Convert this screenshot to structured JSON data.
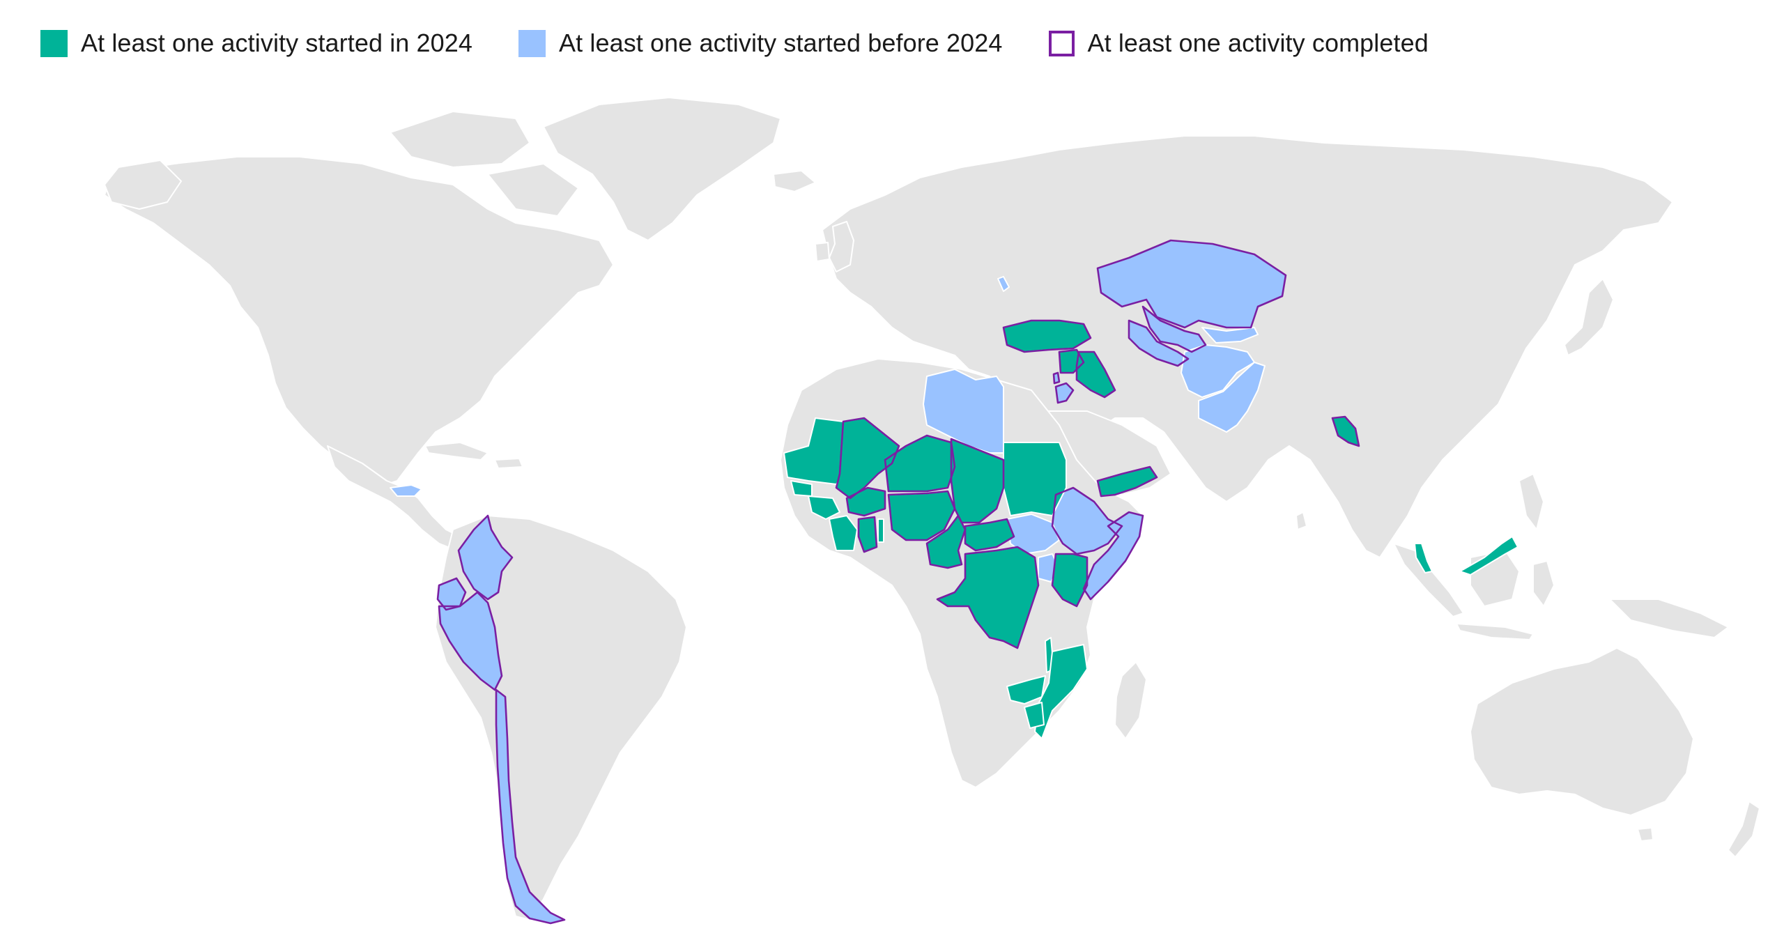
{
  "legend": {
    "items": [
      {
        "label": "At least one activity started in 2024",
        "color": "#00b398",
        "style": "fill"
      },
      {
        "label": "At least one activity started before 2024",
        "color": "#99c2ff",
        "style": "fill"
      },
      {
        "label": "At least one activity completed",
        "color": "#7a1fa2",
        "style": "outline"
      }
    ]
  },
  "map": {
    "land_color": "#e4e4e4",
    "border_color": "#ffffff",
    "categories": {
      "started_in_2024": [
        "Mauritania",
        "Mali",
        "Senegal",
        "Guinea",
        "Côte d'Ivoire",
        "Ghana",
        "Togo",
        "Burkina Faso",
        "Niger",
        "Nigeria",
        "Chad",
        "Sudan",
        "Cameroon",
        "Central African Republic",
        "Democratic Republic of the Congo",
        "Kenya",
        "Malawi",
        "Mozambique",
        "Zambia",
        "Zimbabwe",
        "Turkey",
        "Iraq",
        "Syria",
        "Yemen",
        "Bangladesh",
        "Malaysia"
      ],
      "started_before_2024": [
        "Libya",
        "Ethiopia",
        "South Sudan",
        "Somalia",
        "Uganda",
        "Kazakhstan",
        "Uzbekistan",
        "Turkmenistan",
        "Kyrgyzstan",
        "Afghanistan",
        "Pakistan",
        "Moldova",
        "Lebanon",
        "Jordan",
        "Honduras",
        "Colombia",
        "Ecuador",
        "Peru",
        "Chile"
      ],
      "completed_outline": [
        "Colombia",
        "Ecuador",
        "Peru",
        "Chile",
        "Kazakhstan",
        "Uzbekistan",
        "Turkmenistan",
        "Iraq",
        "Syria",
        "Lebanon",
        "Jordan",
        "Bangladesh",
        "Somalia",
        "Kenya",
        "Ethiopia",
        "Mali",
        "Burkina Faso",
        "Niger",
        "Nigeria",
        "Chad",
        "Cameroon",
        "Central African Republic",
        "Democratic Republic of the Congo",
        "Ghana"
      ]
    }
  }
}
